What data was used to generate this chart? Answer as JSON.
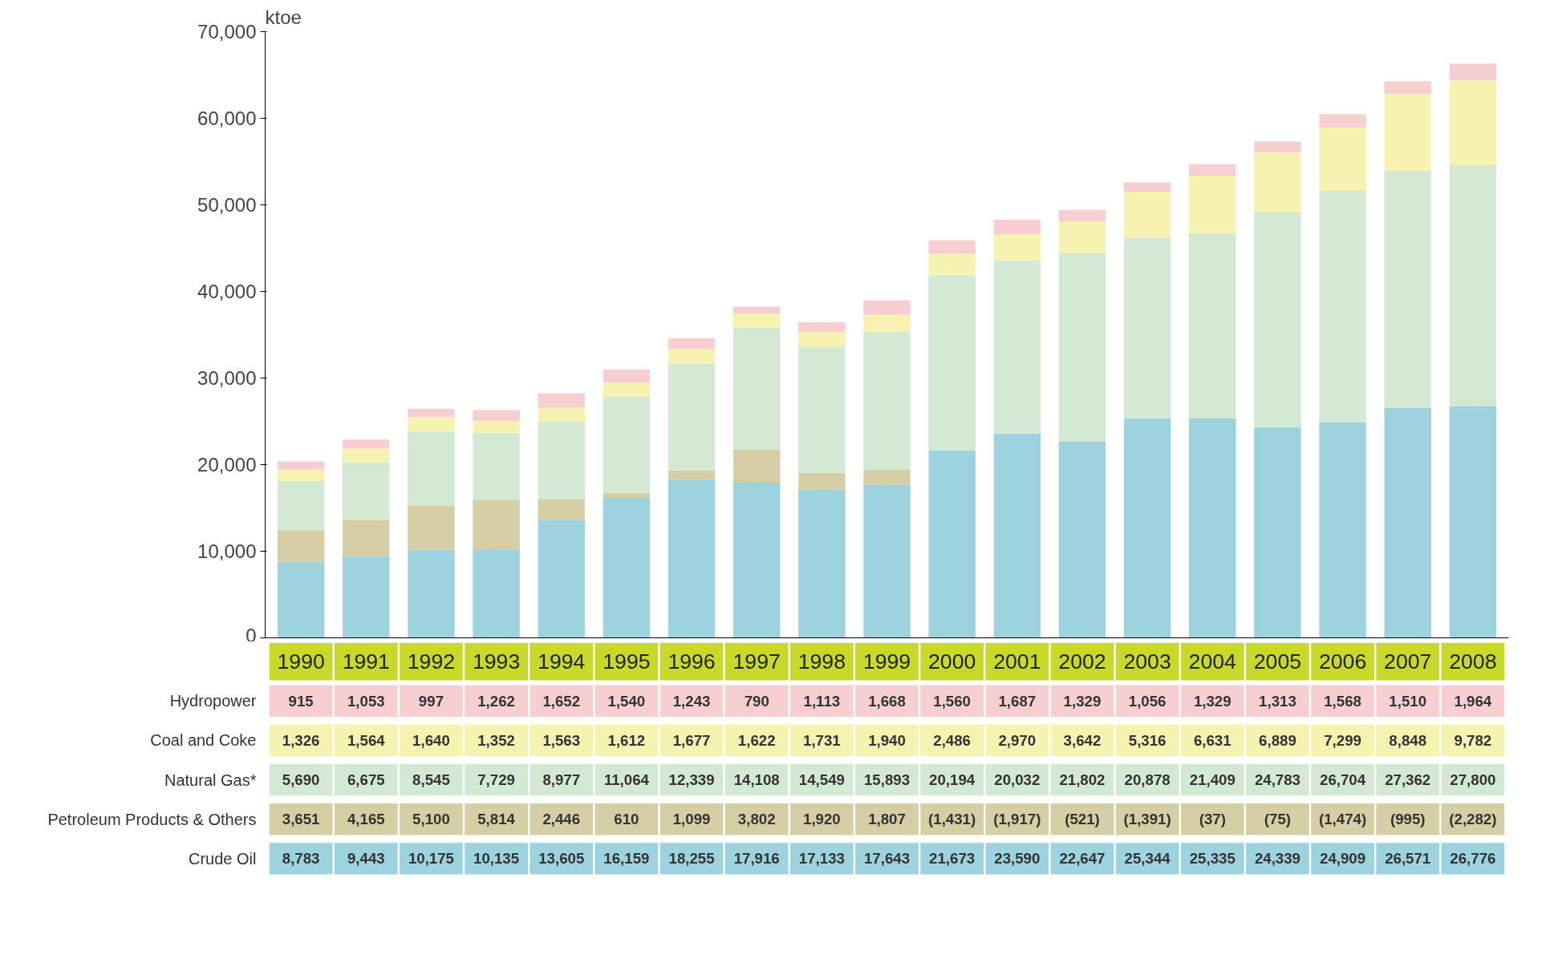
{
  "chart_data": {
    "type": "bar",
    "stacked": true,
    "ylabel": "ktoe",
    "categories": [
      "1990",
      "1991",
      "1992",
      "1993",
      "1994",
      "1995",
      "1996",
      "1997",
      "1998",
      "1999",
      "2000",
      "2001",
      "2002",
      "2003",
      "2004",
      "2005",
      "2006",
      "2007",
      "2008"
    ],
    "series": [
      {
        "name": "Crude Oil",
        "color": "#9dd3df",
        "values": [
          8783,
          9443,
          10175,
          10135,
          13605,
          16159,
          18255,
          17916,
          17133,
          17643,
          21673,
          23590,
          22647,
          25344,
          25335,
          24339,
          24909,
          26571,
          26776
        ],
        "value_labels": [
          "8,783",
          "9,443",
          "10,175",
          "10,135",
          "13,605",
          "16,159",
          "18,255",
          "17,916",
          "17,133",
          "17,643",
          "21,673",
          "23,590",
          "22,647",
          "25,344",
          "25,335",
          "24,339",
          "24,909",
          "26,571",
          "26,776"
        ]
      },
      {
        "name": "Petroleum Products & Others",
        "color": "#d6cfa5",
        "values": [
          3651,
          4165,
          5100,
          5814,
          2446,
          610,
          1099,
          3802,
          1920,
          1807,
          null,
          null,
          null,
          null,
          null,
          null,
          null,
          null,
          null
        ],
        "value_labels": [
          "3,651",
          "4,165",
          "5,100",
          "5,814",
          "2,446",
          "610",
          "1,099",
          "3,802",
          "1,920",
          "1,807",
          "(1,431)",
          "(1,917)",
          "(521)",
          "(1,391)",
          "(37)",
          "(75)",
          "(1,474)",
          "(995)",
          "(2,282)"
        ]
      },
      {
        "name": "Natural Gas*",
        "color": "#d3e9d3",
        "values": [
          5690,
          6675,
          8545,
          7729,
          8977,
          11064,
          12339,
          14108,
          14549,
          15893,
          20194,
          20032,
          21802,
          20878,
          21409,
          24783,
          26704,
          27362,
          27800
        ],
        "value_labels": [
          "5,690",
          "6,675",
          "8,545",
          "7,729",
          "8,977",
          "11,064",
          "12,339",
          "14,108",
          "14,549",
          "15,893",
          "20,194",
          "20,032",
          "21,802",
          "20,878",
          "21,409",
          "24,783",
          "26,704",
          "27,362",
          "27,800"
        ]
      },
      {
        "name": "Coal and Coke",
        "color": "#f6f3b0",
        "values": [
          1326,
          1564,
          1640,
          1352,
          1563,
          1612,
          1677,
          1622,
          1731,
          1940,
          2486,
          2970,
          3642,
          5316,
          6631,
          6889,
          7299,
          8848,
          9782
        ],
        "value_labels": [
          "1,326",
          "1,564",
          "1,640",
          "1,352",
          "1,563",
          "1,612",
          "1,677",
          "1,622",
          "1,731",
          "1,940",
          "2,486",
          "2,970",
          "3,642",
          "5,316",
          "6,631",
          "6,889",
          "7,299",
          "8,848",
          "9,782"
        ]
      },
      {
        "name": "Hydropower",
        "color": "#f7cfd0",
        "values": [
          915,
          1053,
          997,
          1262,
          1652,
          1540,
          1243,
          790,
          1113,
          1668,
          1560,
          1687,
          1329,
          1056,
          1329,
          1313,
          1568,
          1510,
          1964
        ],
        "value_labels": [
          "915",
          "1,053",
          "997",
          "1,262",
          "1,652",
          "1,540",
          "1,243",
          "790",
          "1,113",
          "1,668",
          "1,560",
          "1,687",
          "1,329",
          "1,056",
          "1,329",
          "1,313",
          "1,568",
          "1,510",
          "1,964"
        ]
      }
    ],
    "ylim": [
      0,
      70000
    ],
    "yticks": [
      {
        "value": 0,
        "label": "0"
      },
      {
        "value": 10000,
        "label": "10,000"
      },
      {
        "value": 20000,
        "label": "20,000"
      },
      {
        "value": 30000,
        "label": "30,000"
      },
      {
        "value": 40000,
        "label": "40,000"
      },
      {
        "value": 50000,
        "label": "50,000"
      },
      {
        "value": 60000,
        "label": "60,000"
      },
      {
        "value": 70000,
        "label": "70,000"
      }
    ],
    "grid": false,
    "legend": "bottom"
  }
}
